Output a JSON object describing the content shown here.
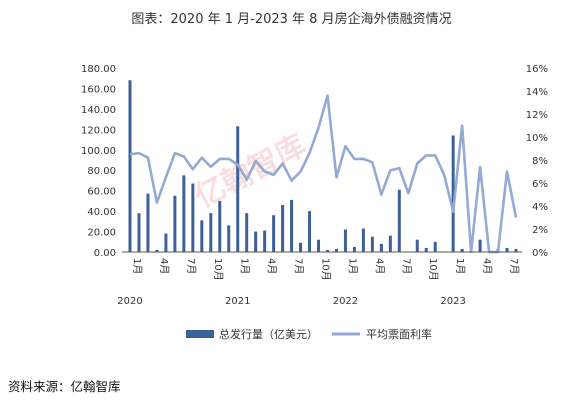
{
  "title": "图表：2020 年 1 月-2023 年 8 月房企海外债融资情况",
  "source": "资料来源：亿翰智库",
  "watermark": "亿翰智库",
  "colors": {
    "bar": "#3d6098",
    "line": "#94a9d3"
  },
  "chart_data": {
    "type": "bar+line",
    "months": [
      "2020-01",
      "2020-02",
      "2020-03",
      "2020-04",
      "2020-05",
      "2020-06",
      "2020-07",
      "2020-08",
      "2020-09",
      "2020-10",
      "2020-11",
      "2020-12",
      "2021-01",
      "2021-02",
      "2021-03",
      "2021-04",
      "2021-05",
      "2021-06",
      "2021-07",
      "2021-08",
      "2021-09",
      "2021-10",
      "2021-11",
      "2021-12",
      "2022-01",
      "2022-02",
      "2022-03",
      "2022-04",
      "2022-05",
      "2022-06",
      "2022-07",
      "2022-08",
      "2022-09",
      "2022-10",
      "2022-11",
      "2022-12",
      "2023-01",
      "2023-02",
      "2023-03",
      "2023-04",
      "2023-05",
      "2023-06",
      "2023-07",
      "2023-08"
    ],
    "month_tick_labels": [
      "1月",
      "",
      "",
      "4月",
      "",
      "",
      "7月",
      "",
      "",
      "10月",
      "",
      "",
      "1月",
      "",
      "",
      "4月",
      "",
      "",
      "7月",
      "",
      "",
      "10月",
      "",
      "",
      "1月",
      "",
      "",
      "4月",
      "",
      "",
      "7月",
      "",
      "",
      "10月",
      "",
      "",
      "1月",
      "",
      "",
      "4月",
      "",
      "",
      "7月",
      ""
    ],
    "year_labels": [
      {
        "label": "2020",
        "month_index": 0
      },
      {
        "label": "2021",
        "month_index": 12
      },
      {
        "label": "2022",
        "month_index": 24
      },
      {
        "label": "2023",
        "month_index": 36
      }
    ],
    "left_axis": {
      "min": 0,
      "max": 180,
      "step": 20,
      "tick_labels": [
        "0.00",
        "20.00",
        "40.00",
        "60.00",
        "80.00",
        "100.00",
        "120.00",
        "140.00",
        "160.00",
        "180.00"
      ]
    },
    "right_axis": {
      "min": 0,
      "max": 16,
      "step": 2,
      "tick_labels": [
        "0%",
        "2%",
        "4%",
        "6%",
        "8%",
        "10%",
        "12%",
        "14%",
        "16%"
      ]
    },
    "series": [
      {
        "name": "总发行量（亿美元）",
        "type": "bar",
        "axis": "left",
        "values": [
          168,
          38,
          57,
          2,
          18,
          55,
          75,
          67,
          31,
          38,
          50,
          26,
          123,
          38,
          20,
          21,
          36,
          46,
          51,
          9,
          40,
          12,
          2,
          3,
          22,
          5,
          23,
          15,
          8,
          16,
          61,
          0,
          12,
          4,
          10,
          0,
          114,
          3,
          0,
          12,
          0,
          3,
          4,
          3
        ]
      },
      {
        "name": "平均票面利率",
        "type": "line",
        "axis": "right",
        "values": [
          8.5,
          8.6,
          8.2,
          4.3,
          6.5,
          8.6,
          8.3,
          7.2,
          8.2,
          7.4,
          8.1,
          8.1,
          7.6,
          6.3,
          7.9,
          7.0,
          6.7,
          7.7,
          6.2,
          7.0,
          8.6,
          10.8,
          13.6,
          6.5,
          9.2,
          8.1,
          8.1,
          7.8,
          5.0,
          7.1,
          7.3,
          5.1,
          7.7,
          8.4,
          8.4,
          6.7,
          3.5,
          11.0,
          0,
          7.4,
          0,
          0,
          7.0,
          3.0
        ]
      }
    ]
  }
}
